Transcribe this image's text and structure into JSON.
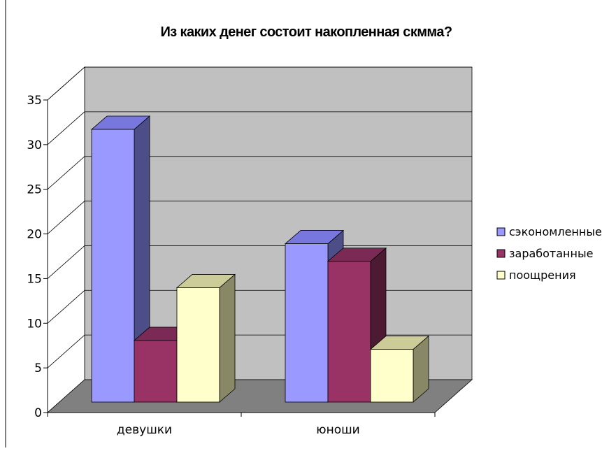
{
  "chart_data": {
    "type": "bar",
    "title": "Из каких денег состоит накопленная скмма?",
    "categories": [
      "девушки",
      "юноши"
    ],
    "series": [
      {
        "name": "сэкономленные",
        "values": [
          31,
          18
        ]
      },
      {
        "name": "заработанные",
        "values": [
          7,
          16
        ]
      },
      {
        "name": "поощрения",
        "values": [
          13,
          6
        ]
      }
    ],
    "ylim": [
      0,
      35
    ],
    "yticks": [
      0,
      5,
      10,
      15,
      20,
      25,
      30,
      35
    ],
    "xlabel": "",
    "ylabel": "",
    "grid": true,
    "legend": "right",
    "three_d": true
  },
  "colors": {
    "series": [
      {
        "front": "#9999ff",
        "top": "#7777dd",
        "side": "#4d4d88"
      },
      {
        "front": "#993366",
        "top": "#7a2a55",
        "side": "#4d1a33"
      },
      {
        "front": "#ffffcc",
        "top": "#cccc99",
        "side": "#888866"
      }
    ],
    "back_wall": "#c0c0c0",
    "floor": "#808080",
    "grid": "#000000"
  }
}
